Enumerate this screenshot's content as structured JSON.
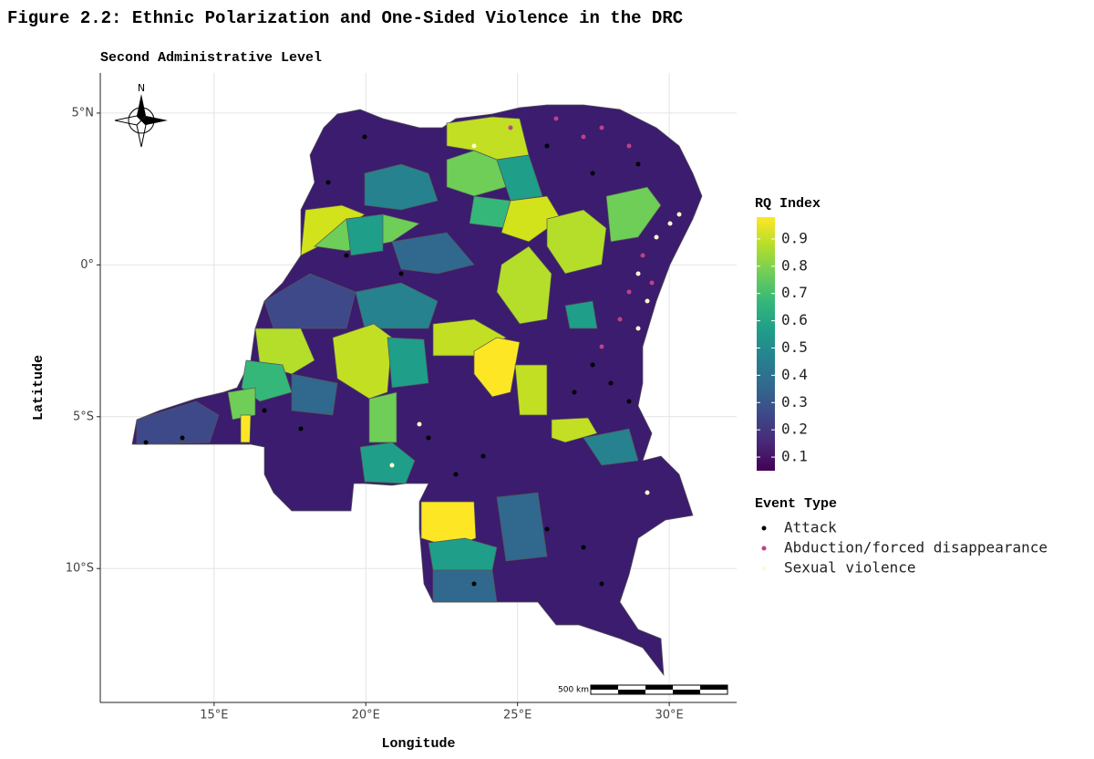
{
  "title": "Figure 2.2: Ethnic Polarization and One-Sided Violence in the DRC",
  "subtitle": "Second Administrative Level",
  "x_axis": {
    "label": "Longitude",
    "lim": [
      11.25,
      32.22
    ],
    "ticks": [
      {
        "value": 15,
        "label": "15°E"
      },
      {
        "value": 20,
        "label": "20°E"
      },
      {
        "value": 25,
        "label": "25°E"
      },
      {
        "value": 30,
        "label": "30°E"
      }
    ]
  },
  "y_axis": {
    "label": "Latitude",
    "lim": [
      -14.41,
      6.32
    ],
    "ticks": [
      {
        "value": 5,
        "label": "5°N"
      },
      {
        "value": 0,
        "label": "0°"
      },
      {
        "value": -5,
        "label": "5°S"
      },
      {
        "value": -10,
        "label": "10°S"
      }
    ]
  },
  "colorbar": {
    "title": "RQ Index",
    "lim": [
      0.05,
      0.98
    ],
    "ticks": [
      0.1,
      0.2,
      0.3,
      0.4,
      0.5,
      0.6,
      0.7,
      0.8,
      0.9
    ],
    "colormap": [
      "#440154",
      "#482878",
      "#3e4989",
      "#31688e",
      "#26828e",
      "#1f9e89",
      "#35b779",
      "#6ece58",
      "#b5de2b",
      "#fde725"
    ]
  },
  "legend": {
    "title": "Event Type",
    "items": [
      {
        "name": "Attack",
        "color": "#000000"
      },
      {
        "name": "Abduction/forced disappearance",
        "color": "#c0408a"
      },
      {
        "name": "Sexual violence",
        "color": "#fffbd0"
      }
    ]
  },
  "north_label": "N",
  "scale_bar": "500 km"
}
